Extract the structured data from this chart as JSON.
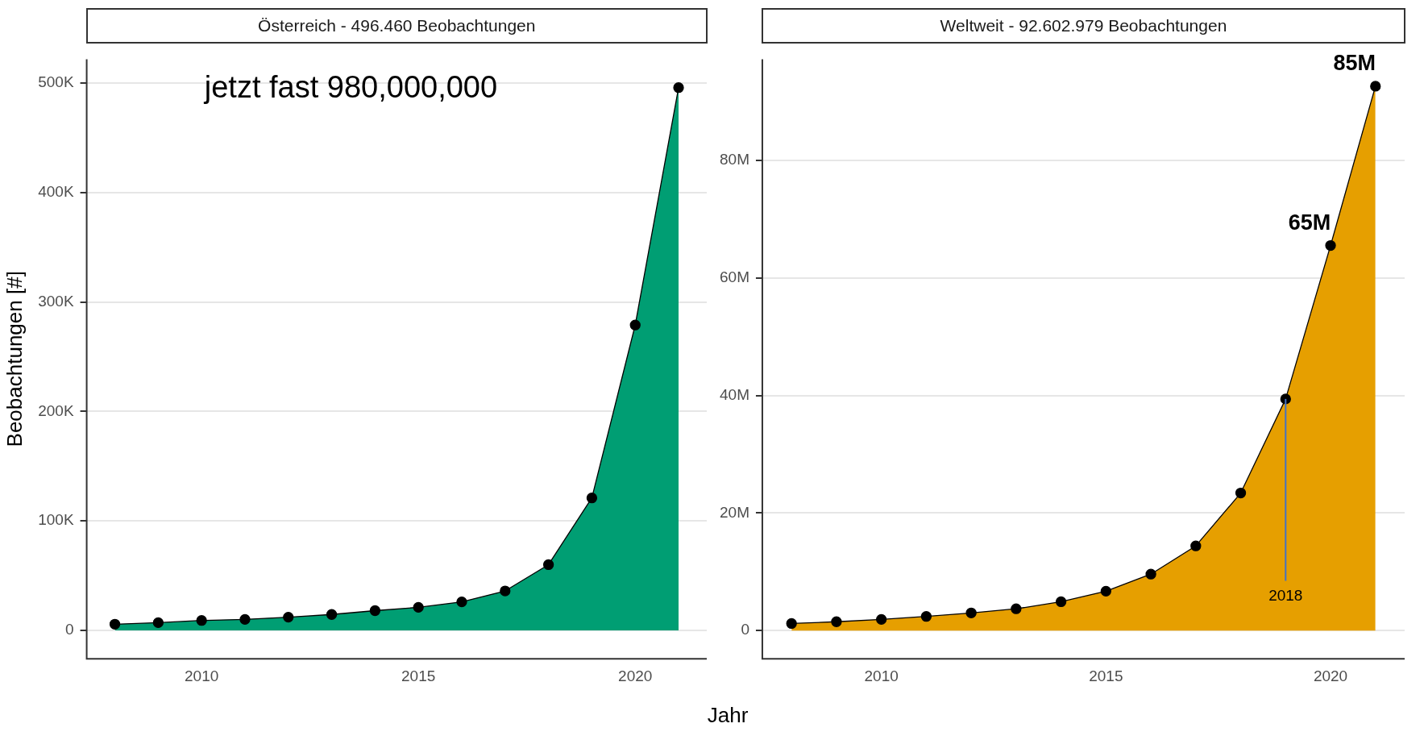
{
  "chart_data": [
    {
      "type": "area",
      "title": "Österreich - 496.460 Beobachtungen",
      "ylabel": "Beobachtungen [#]",
      "xlabel": "Jahr",
      "x": [
        2008,
        2009,
        2010,
        2011,
        2012,
        2013,
        2014,
        2015,
        2016,
        2017,
        2018,
        2019,
        2020,
        2021
      ],
      "series": [
        {
          "color": "#009e73",
          "values": [
            5600,
            7000,
            9000,
            10000,
            12000,
            14500,
            18000,
            21000,
            26000,
            36000,
            60000,
            121000,
            279000,
            496000
          ]
        }
      ],
      "xlim": [
        2007.35,
        2021.65
      ],
      "xticks": [
        2010,
        2015,
        2020
      ],
      "ylim": [
        -26000,
        522000
      ],
      "yticks": [
        {
          "value": 0,
          "label": "0"
        },
        {
          "value": 100000,
          "label": "100K"
        },
        {
          "value": 200000,
          "label": "200K"
        },
        {
          "value": 300000,
          "label": "300K"
        },
        {
          "value": 400000,
          "label": "400K"
        },
        {
          "value": 500000,
          "label": "500K"
        }
      ],
      "grid": "y",
      "legend": false,
      "marker": "circle",
      "annotations": [
        "jetzt fast 980,000,000"
      ]
    },
    {
      "type": "area",
      "title": "Weltweit - 92.602.979 Beobachtungen",
      "x": [
        2008,
        2009,
        2010,
        2011,
        2012,
        2013,
        2014,
        2015,
        2016,
        2017,
        2018,
        2019,
        2020,
        2021
      ],
      "series": [
        {
          "color": "#e69f00",
          "values": [
            1200000,
            1500000,
            1900000,
            2400000,
            3000000,
            3700000,
            4900000,
            6700000,
            9600000,
            14400000,
            23400000,
            39400000,
            65500000,
            92600000
          ]
        }
      ],
      "xlim": [
        2007.35,
        2021.65
      ],
      "xticks": [
        2010,
        2015,
        2020
      ],
      "ylim": [
        -4800000,
        97200000
      ],
      "yticks": [
        {
          "value": 0,
          "label": "0"
        },
        {
          "value": 20000000,
          "label": "20M"
        },
        {
          "value": 40000000,
          "label": "40M"
        },
        {
          "value": 60000000,
          "label": "60M"
        },
        {
          "value": 80000000,
          "label": "80M"
        }
      ],
      "grid": "y",
      "legend": false,
      "marker": "circle",
      "annotations": [
        {
          "text": "85M",
          "x": 2021,
          "y": 92600000
        },
        {
          "text": "65M",
          "x": 2020,
          "y": 65500000
        },
        "2018"
      ],
      "ref_lines": [
        {
          "axis": "x",
          "value": 2019,
          "color": "#4472c4"
        }
      ]
    }
  ]
}
